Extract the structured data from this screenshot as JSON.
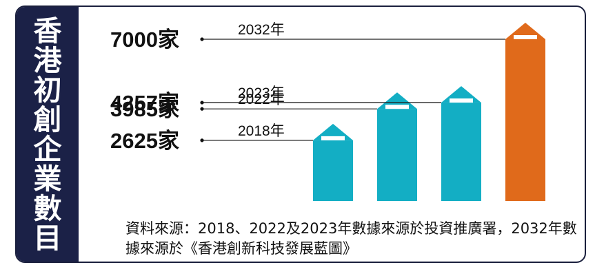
{
  "title": "香港初創企業數目",
  "chart_data": {
    "type": "bar",
    "title": "香港初創企業數目",
    "categories": [
      "2018年",
      "2022年",
      "2023年",
      "2032年"
    ],
    "values": [
      2625,
      3985,
      4257,
      7000
    ],
    "value_labels": [
      "2625家",
      "3985家",
      "4257家",
      "7000家"
    ],
    "colors": [
      "#13aec4",
      "#13aec4",
      "#13aec4",
      "#e06a1b"
    ],
    "ylim": [
      0,
      7000
    ]
  },
  "note": "資料來源：2018、2022及2023年數據來源於投資推廣署，2032年數據來源於《香港創新科技發展藍圖》"
}
